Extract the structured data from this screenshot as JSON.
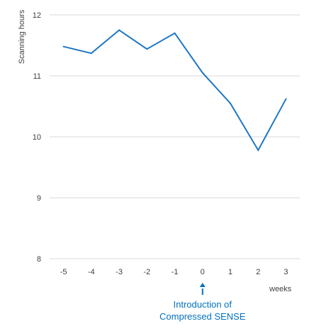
{
  "chart_data": {
    "type": "line",
    "x": [
      -5,
      -4,
      -3,
      -2,
      -1,
      0,
      1,
      2,
      3
    ],
    "categories": [
      "-5",
      "-4",
      "-3",
      "-2",
      "-1",
      "0",
      "1",
      "2",
      "3"
    ],
    "series": [
      {
        "values": [
          11.48,
          11.37,
          11.75,
          11.44,
          11.7,
          11.05,
          10.55,
          9.78,
          10.62
        ],
        "color": "#1f77c4"
      }
    ],
    "ylim": [
      8,
      12
    ],
    "yticks": [
      "8",
      "9",
      "10",
      "11",
      "12"
    ],
    "ylabel": "Scanning hours",
    "xlabel": "weeks",
    "grid": true,
    "legend": "none",
    "annotation": {
      "at_x": 0,
      "line1": "Introduction of",
      "line2": "Compressed SENSE",
      "color": "#0070c0",
      "icon": "arrow-up-icon"
    }
  }
}
